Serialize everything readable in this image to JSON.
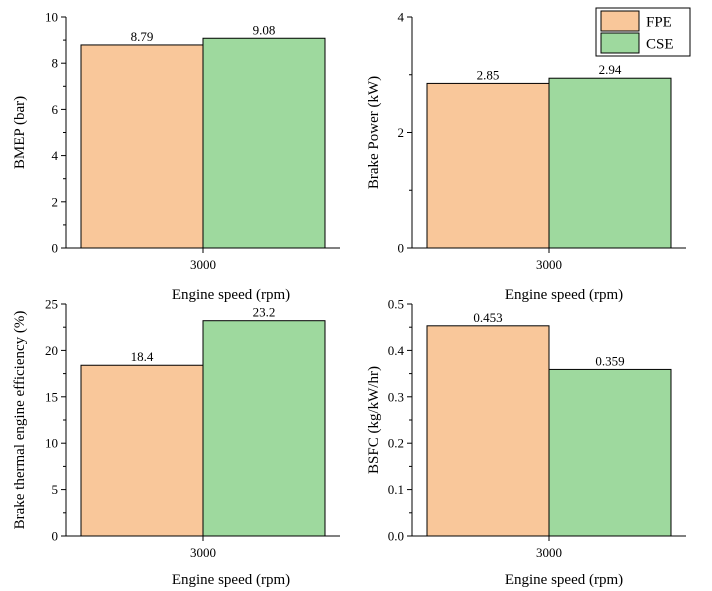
{
  "colors": {
    "FPE": "#f9c79a",
    "CSE": "#9ed99e",
    "axis": "#000000"
  },
  "legend": [
    {
      "name": "FPE",
      "color": "#f9c79a"
    },
    {
      "name": "CSE",
      "color": "#9ed99e"
    }
  ],
  "chart_data": [
    {
      "type": "bar",
      "categories": [
        "3000"
      ],
      "series": [
        {
          "name": "FPE",
          "values": [
            8.79
          ],
          "label": "8.79"
        },
        {
          "name": "CSE",
          "values": [
            9.08
          ],
          "label": "9.08"
        }
      ],
      "xlabel": "Engine speed (rpm)",
      "ylabel": "BMEP (bar)",
      "ylim": [
        0,
        10
      ],
      "yticks": [
        "0",
        "2",
        "4",
        "6",
        "8",
        "10"
      ]
    },
    {
      "type": "bar",
      "categories": [
        "3000"
      ],
      "series": [
        {
          "name": "FPE",
          "values": [
            2.85
          ],
          "label": "2.85"
        },
        {
          "name": "CSE",
          "values": [
            2.94
          ],
          "label": "2.94"
        }
      ],
      "xlabel": "Engine speed (rpm)",
      "ylabel": "Brake Power (kW)",
      "ylim": [
        0,
        4
      ],
      "yticks": [
        "0",
        "2",
        "4"
      ],
      "legend": "top-right"
    },
    {
      "type": "bar",
      "categories": [
        "3000"
      ],
      "series": [
        {
          "name": "FPE",
          "values": [
            18.4
          ],
          "label": "18.4"
        },
        {
          "name": "CSE",
          "values": [
            23.2
          ],
          "label": "23.2"
        }
      ],
      "xlabel": "Engine speed (rpm)",
      "ylabel": "Brake thermal engine efficiency (%)",
      "ylim": [
        0,
        25
      ],
      "yticks": [
        "0",
        "5",
        "10",
        "15",
        "20",
        "25"
      ]
    },
    {
      "type": "bar",
      "categories": [
        "3000"
      ],
      "series": [
        {
          "name": "FPE",
          "values": [
            0.453
          ],
          "label": "0.453"
        },
        {
          "name": "CSE",
          "values": [
            0.359
          ],
          "label": "0.359"
        }
      ],
      "xlabel": "Engine speed (rpm)",
      "ylabel": "BSFC (kg/kW/hr)",
      "ylim": [
        0,
        0.5
      ],
      "yticks": [
        "0.0",
        "0.1",
        "0.2",
        "0.3",
        "0.4",
        "0.5"
      ]
    }
  ]
}
